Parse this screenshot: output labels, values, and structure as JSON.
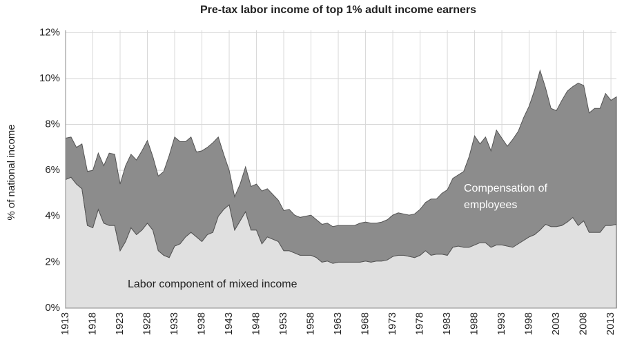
{
  "chart_data": {
    "type": "stacked_area",
    "title": "Pre-tax labor income of top 1% adult income earners",
    "y_label": "%  of national income",
    "annotations": [
      [
        "Compensation of",
        "employees"
      ],
      [
        "Labor component of mixed income"
      ]
    ],
    "x": [
      1913,
      1914,
      1915,
      1916,
      1917,
      1918,
      1919,
      1920,
      1921,
      1922,
      1923,
      1924,
      1925,
      1926,
      1927,
      1928,
      1929,
      1930,
      1931,
      1932,
      1933,
      1934,
      1935,
      1936,
      1937,
      1938,
      1939,
      1940,
      1941,
      1942,
      1943,
      1944,
      1945,
      1946,
      1947,
      1948,
      1949,
      1950,
      1951,
      1952,
      1953,
      1954,
      1955,
      1956,
      1957,
      1958,
      1959,
      1960,
      1961,
      1962,
      1963,
      1964,
      1965,
      1966,
      1967,
      1968,
      1969,
      1970,
      1971,
      1972,
      1973,
      1974,
      1975,
      1976,
      1977,
      1978,
      1979,
      1980,
      1981,
      1982,
      1983,
      1984,
      1985,
      1986,
      1987,
      1988,
      1989,
      1990,
      1991,
      1992,
      1993,
      1994,
      1995,
      1996,
      1997,
      1998,
      1999,
      2000,
      2001,
      2002,
      2003,
      2004,
      2005,
      2006,
      2007,
      2008,
      2009,
      2010,
      2011,
      2012,
      2013,
      2014
    ],
    "series": [
      {
        "name": "Labor component of mixed income",
        "color": "#e0e0e0",
        "values": [
          5.6,
          5.7,
          5.4,
          5.2,
          3.6,
          3.5,
          4.3,
          3.7,
          3.6,
          3.6,
          2.5,
          2.9,
          3.5,
          3.2,
          3.4,
          3.7,
          3.4,
          2.5,
          2.3,
          2.2,
          2.7,
          2.8,
          3.1,
          3.3,
          3.1,
          2.9,
          3.2,
          3.3,
          4.0,
          4.3,
          4.5,
          3.4,
          3.8,
          4.2,
          3.4,
          3.4,
          2.8,
          3.1,
          3.0,
          2.9,
          2.5,
          2.5,
          2.4,
          2.3,
          2.3,
          2.3,
          2.2,
          2.0,
          2.05,
          1.95,
          2.0,
          2.0,
          2.0,
          2.0,
          2.0,
          2.05,
          2.0,
          2.05,
          2.05,
          2.1,
          2.25,
          2.3,
          2.3,
          2.25,
          2.2,
          2.3,
          2.5,
          2.3,
          2.35,
          2.35,
          2.3,
          2.65,
          2.7,
          2.65,
          2.65,
          2.75,
          2.85,
          2.85,
          2.65,
          2.75,
          2.75,
          2.7,
          2.65,
          2.8,
          2.95,
          3.1,
          3.2,
          3.4,
          3.65,
          3.55,
          3.55,
          3.6,
          3.75,
          3.95,
          3.6,
          3.8,
          3.3,
          3.3,
          3.3,
          3.6,
          3.6,
          3.65
        ]
      },
      {
        "name": "Compensation of employees",
        "color": "#8c8c8c",
        "values": [
          1.8,
          1.75,
          1.6,
          1.95,
          2.35,
          2.5,
          2.45,
          2.5,
          3.15,
          3.1,
          2.9,
          3.3,
          3.2,
          3.25,
          3.45,
          3.6,
          3.2,
          3.25,
          3.65,
          4.45,
          4.75,
          4.45,
          4.15,
          4.15,
          3.7,
          3.95,
          3.8,
          3.9,
          3.45,
          2.4,
          1.5,
          1.45,
          1.6,
          1.95,
          1.9,
          2.0,
          2.3,
          2.1,
          1.95,
          1.8,
          1.75,
          1.8,
          1.65,
          1.65,
          1.7,
          1.75,
          1.65,
          1.65,
          1.65,
          1.6,
          1.6,
          1.6,
          1.6,
          1.6,
          1.7,
          1.7,
          1.7,
          1.65,
          1.7,
          1.75,
          1.8,
          1.85,
          1.8,
          1.8,
          1.9,
          2.0,
          2.1,
          2.45,
          2.4,
          2.65,
          2.85,
          3.0,
          3.1,
          3.3,
          3.95,
          4.75,
          4.3,
          4.6,
          4.2,
          5.0,
          4.65,
          4.35,
          4.7,
          4.9,
          5.35,
          5.7,
          6.3,
          6.95,
          5.95,
          5.15,
          5.05,
          5.45,
          5.7,
          5.7,
          6.2,
          5.9,
          5.2,
          5.4,
          5.4,
          5.75,
          5.45,
          5.55
        ]
      }
    ],
    "xlim": [
      1913,
      2014
    ],
    "xticks": [
      1913,
      1918,
      1923,
      1928,
      1933,
      1938,
      1943,
      1948,
      1953,
      1958,
      1963,
      1968,
      1973,
      1978,
      1983,
      1988,
      1993,
      1998,
      2003,
      2008,
      2013
    ],
    "ylim": [
      0,
      12.4
    ],
    "yticks": [
      {
        "value": 0,
        "label": "0%"
      },
      {
        "value": 2,
        "label": "2%"
      },
      {
        "value": 4,
        "label": "4%"
      },
      {
        "value": 6,
        "label": "6%"
      },
      {
        "value": 8,
        "label": "8%"
      },
      {
        "value": 10,
        "label": "10%"
      },
      {
        "value": 12,
        "label": "12%"
      }
    ],
    "grid": true
  }
}
